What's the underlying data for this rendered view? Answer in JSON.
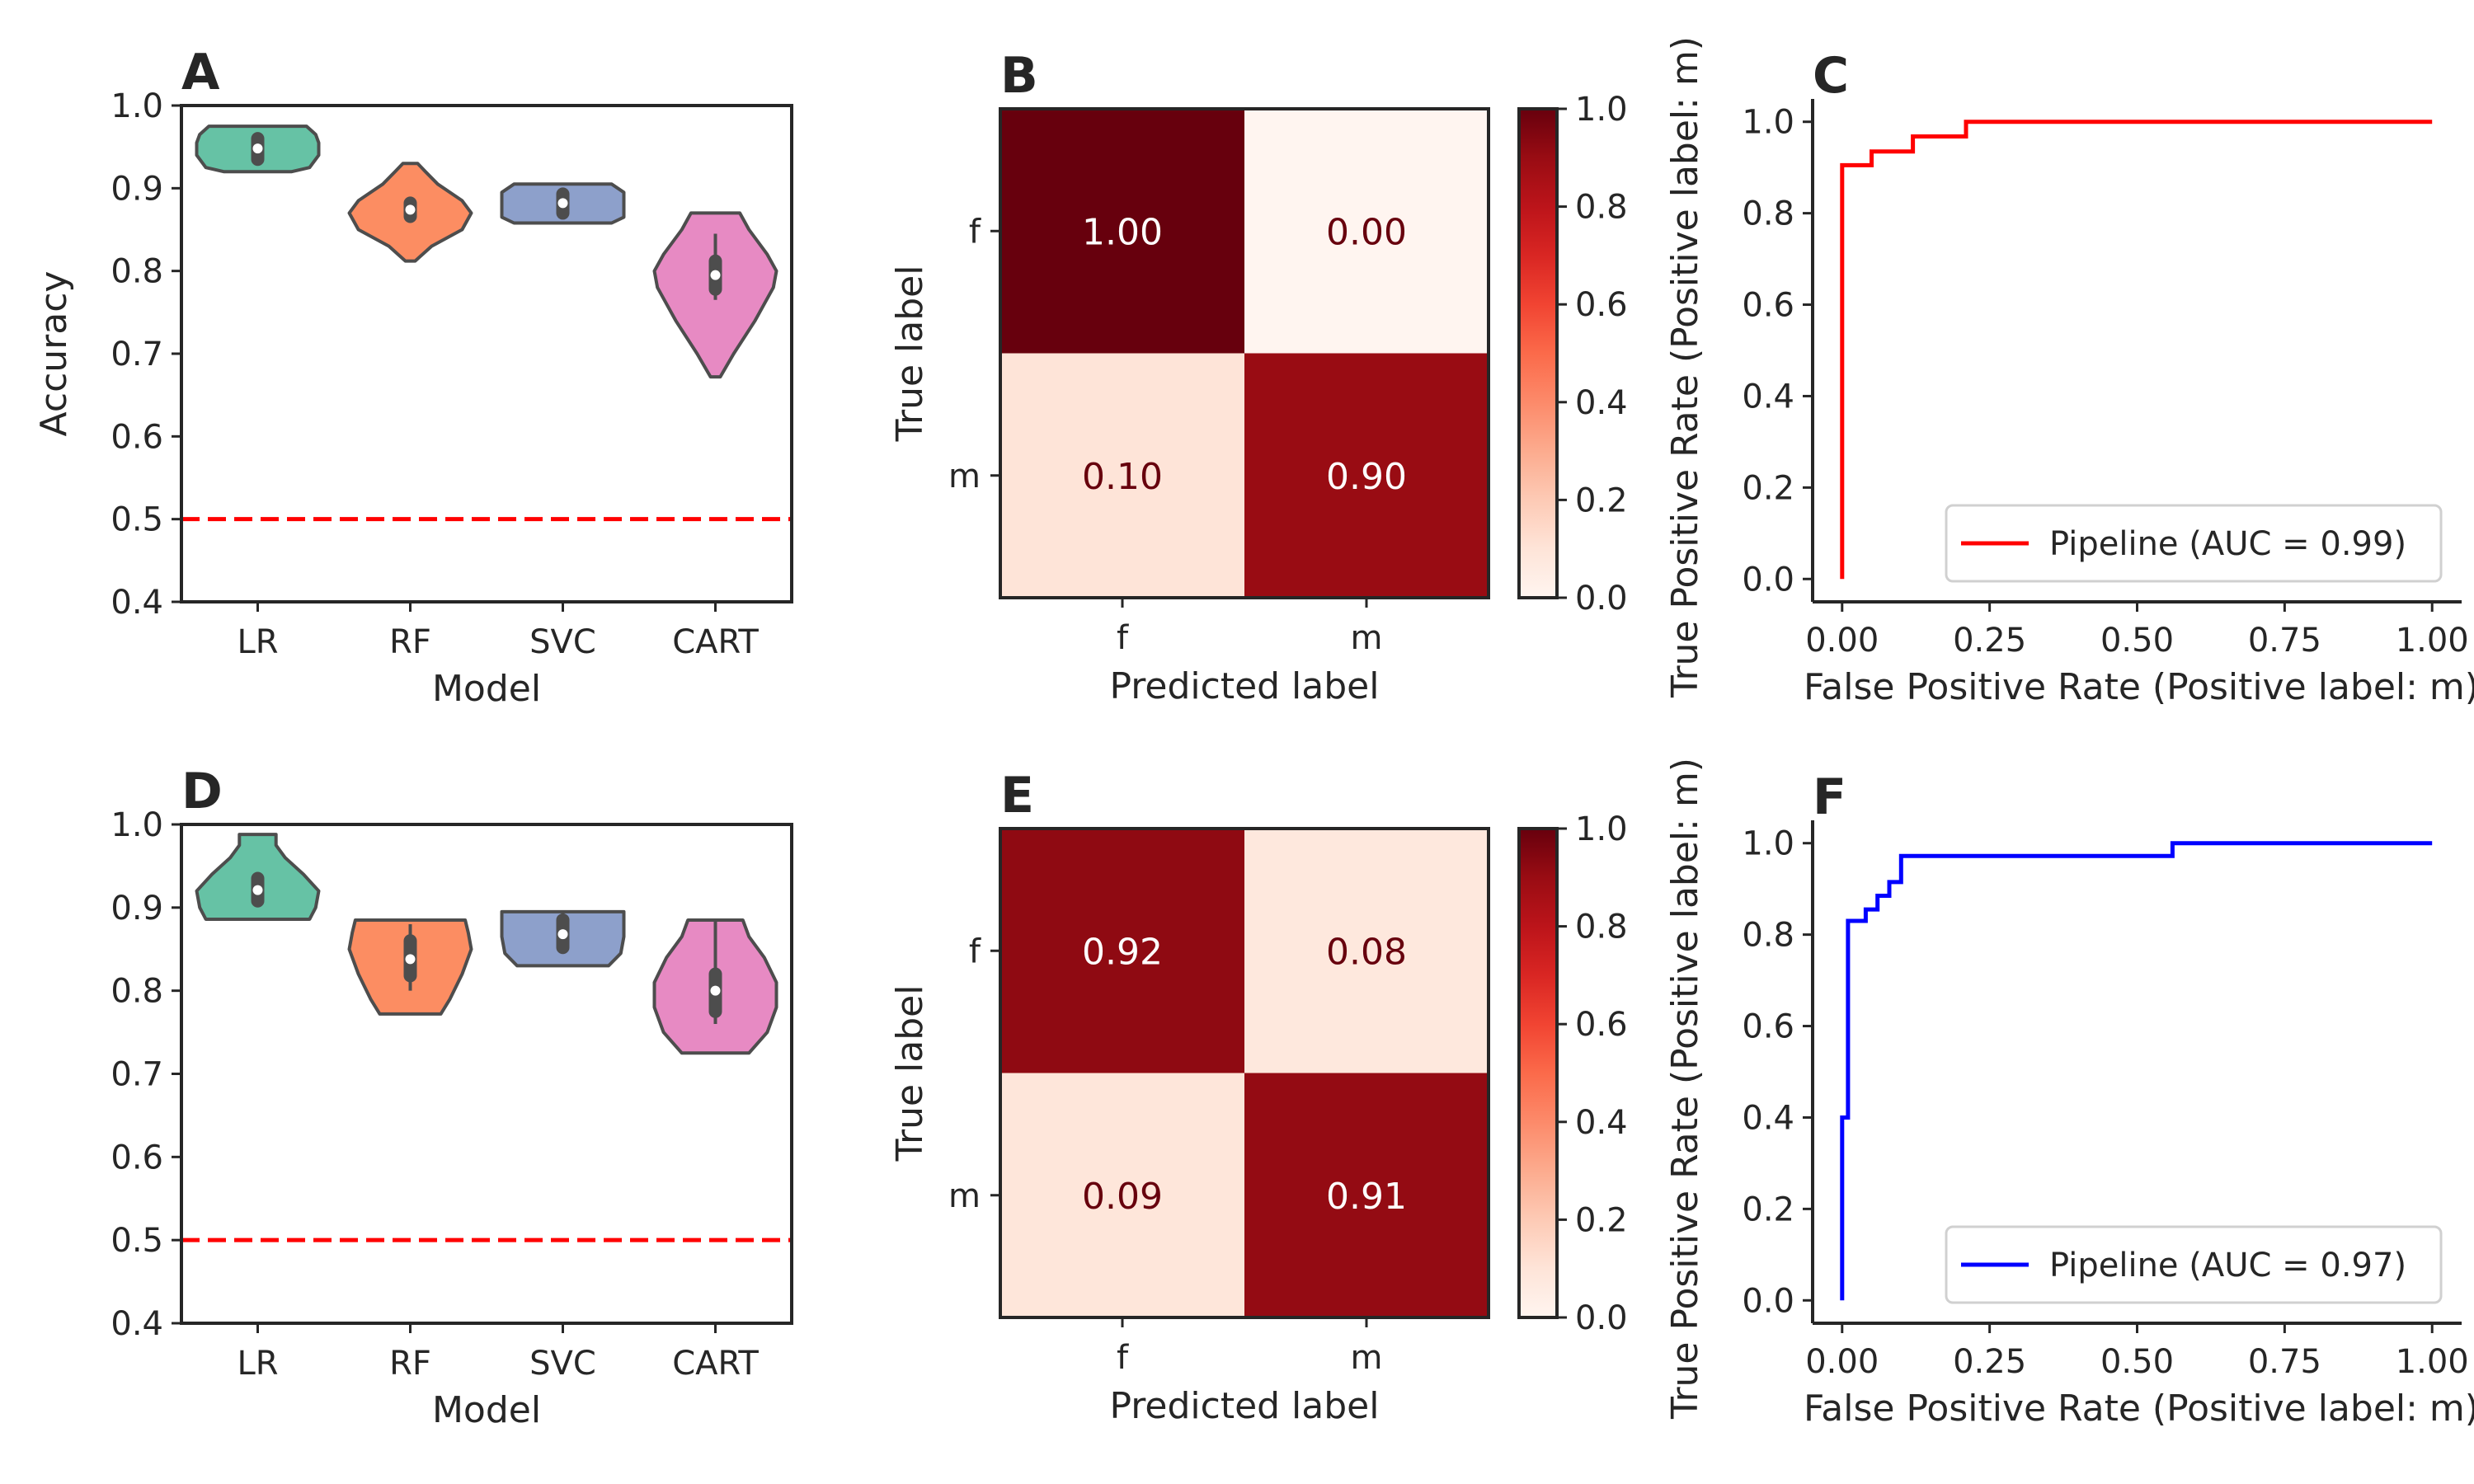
{
  "chart_data": [
    {
      "panel": "A",
      "type": "violin",
      "xlabel": "Model",
      "ylabel": "Accuracy",
      "categories": [
        "LR",
        "RF",
        "SVC",
        "CART"
      ],
      "ylim": [
        0.4,
        1.0
      ],
      "yticks": [
        "0.4",
        "0.5",
        "0.6",
        "0.7",
        "0.8",
        "0.9",
        "1.0"
      ],
      "reference_line": {
        "y": 0.5,
        "color": "#ff0000",
        "style": "dashed"
      },
      "violins": [
        {
          "category": "LR",
          "color": "#66c2a5",
          "min": 0.92,
          "max": 0.975,
          "q1": 0.935,
          "q3": 0.96,
          "median": 0.948,
          "profile": [
            [
              0.92,
              0.55
            ],
            [
              0.925,
              0.85
            ],
            [
              0.94,
              1.0
            ],
            [
              0.955,
              1.0
            ],
            [
              0.965,
              0.95
            ],
            [
              0.975,
              0.8
            ]
          ]
        },
        {
          "category": "RF",
          "color": "#fc8d62",
          "min": 0.812,
          "max": 0.93,
          "q1": 0.866,
          "q3": 0.882,
          "median": 0.874,
          "profile": [
            [
              0.812,
              0.08
            ],
            [
              0.83,
              0.35
            ],
            [
              0.85,
              0.85
            ],
            [
              0.87,
              1.0
            ],
            [
              0.885,
              0.85
            ],
            [
              0.905,
              0.45
            ],
            [
              0.92,
              0.25
            ],
            [
              0.93,
              0.12
            ]
          ]
        },
        {
          "category": "SVC",
          "color": "#8da0cb",
          "min": 0.858,
          "max": 0.905,
          "q1": 0.87,
          "q3": 0.893,
          "median": 0.882,
          "profile": [
            [
              0.858,
              0.8
            ],
            [
              0.865,
              1.0
            ],
            [
              0.88,
              1.0
            ],
            [
              0.895,
              1.0
            ],
            [
              0.905,
              0.8
            ]
          ]
        },
        {
          "category": "CART",
          "color": "#e78ac3",
          "min": 0.672,
          "max": 0.87,
          "q1": 0.778,
          "q3": 0.812,
          "median": 0.795,
          "whisker": [
            0.765,
            0.845
          ],
          "profile": [
            [
              0.672,
              0.08
            ],
            [
              0.7,
              0.3
            ],
            [
              0.74,
              0.65
            ],
            [
              0.78,
              0.95
            ],
            [
              0.8,
              1.0
            ],
            [
              0.82,
              0.85
            ],
            [
              0.85,
              0.55
            ],
            [
              0.87,
              0.4
            ]
          ]
        }
      ]
    },
    {
      "panel": "B",
      "type": "heatmap",
      "xlabel": "Predicted label",
      "ylabel": "True label",
      "x_categories": [
        "f",
        "m"
      ],
      "y_categories": [
        "f",
        "m"
      ],
      "values": [
        [
          1.0,
          0.0
        ],
        [
          0.1,
          0.9
        ]
      ],
      "labels": [
        [
          "1.00",
          "0.00"
        ],
        [
          "0.10",
          "0.90"
        ]
      ],
      "colorbar": {
        "min": 0.0,
        "max": 1.0,
        "ticks": [
          "0.0",
          "0.2",
          "0.4",
          "0.6",
          "0.8",
          "1.0"
        ],
        "colormap": "Reds"
      }
    },
    {
      "panel": "C",
      "type": "line",
      "xlabel": "False Positive Rate (Positive label: m)",
      "ylabel": "True Positive Rate (Positive label: m)",
      "xlim": [
        -0.05,
        1.05
      ],
      "ylim": [
        -0.05,
        1.05
      ],
      "xticks": [
        "0.00",
        "0.25",
        "0.50",
        "0.75",
        "1.00"
      ],
      "yticks": [
        "0.0",
        "0.2",
        "0.4",
        "0.6",
        "0.8",
        "1.0"
      ],
      "legend": "lower-right",
      "series": [
        {
          "name": "Pipeline (AUC = 0.99)",
          "color": "#ff0000",
          "x": [
            0,
            0,
            0.05,
            0.05,
            0.12,
            0.12,
            0.21,
            0.21,
            1.0
          ],
          "y": [
            0,
            0.905,
            0.905,
            0.935,
            0.935,
            0.968,
            0.968,
            1.0,
            1.0
          ]
        }
      ]
    },
    {
      "panel": "D",
      "type": "violin",
      "xlabel": "Model",
      "ylabel": "",
      "categories": [
        "LR",
        "RF",
        "SVC",
        "CART"
      ],
      "ylim": [
        0.4,
        1.0
      ],
      "yticks": [
        "0.4",
        "0.5",
        "0.6",
        "0.7",
        "0.8",
        "0.9",
        "1.0"
      ],
      "reference_line": {
        "y": 0.5,
        "color": "#ff0000",
        "style": "dashed"
      },
      "violins": [
        {
          "category": "LR",
          "color": "#66c2a5",
          "min": 0.886,
          "max": 0.988,
          "q1": 0.908,
          "q3": 0.935,
          "median": 0.921,
          "profile": [
            [
              0.886,
              0.85
            ],
            [
              0.9,
              0.95
            ],
            [
              0.92,
              1.0
            ],
            [
              0.94,
              0.75
            ],
            [
              0.96,
              0.45
            ],
            [
              0.975,
              0.3
            ],
            [
              0.988,
              0.3
            ]
          ]
        },
        {
          "category": "RF",
          "color": "#fc8d62",
          "min": 0.772,
          "max": 0.885,
          "q1": 0.818,
          "q3": 0.86,
          "median": 0.838,
          "whisker": [
            0.8,
            0.88
          ],
          "profile": [
            [
              0.772,
              0.5
            ],
            [
              0.79,
              0.65
            ],
            [
              0.82,
              0.85
            ],
            [
              0.85,
              1.0
            ],
            [
              0.87,
              0.95
            ],
            [
              0.885,
              0.9
            ]
          ]
        },
        {
          "category": "SVC",
          "color": "#8da0cb",
          "min": 0.83,
          "max": 0.895,
          "q1": 0.852,
          "q3": 0.885,
          "median": 0.868,
          "whisker": [
            0.845,
            0.895
          ],
          "profile": [
            [
              0.83,
              0.75
            ],
            [
              0.845,
              0.95
            ],
            [
              0.865,
              1.0
            ],
            [
              0.88,
              1.0
            ],
            [
              0.895,
              1.0
            ]
          ]
        },
        {
          "category": "CART",
          "color": "#e78ac3",
          "min": 0.725,
          "max": 0.885,
          "q1": 0.775,
          "q3": 0.82,
          "median": 0.8,
          "whisker": [
            0.76,
            0.885
          ],
          "profile": [
            [
              0.725,
              0.55
            ],
            [
              0.75,
              0.85
            ],
            [
              0.78,
              1.0
            ],
            [
              0.81,
              1.0
            ],
            [
              0.84,
              0.8
            ],
            [
              0.865,
              0.55
            ],
            [
              0.885,
              0.45
            ]
          ]
        }
      ]
    },
    {
      "panel": "E",
      "type": "heatmap",
      "xlabel": "Predicted label",
      "ylabel": "True label",
      "x_categories": [
        "f",
        "m"
      ],
      "y_categories": [
        "f",
        "m"
      ],
      "values": [
        [
          0.92,
          0.08
        ],
        [
          0.09,
          0.91
        ]
      ],
      "labels": [
        [
          "0.92",
          "0.08"
        ],
        [
          "0.09",
          "0.91"
        ]
      ],
      "colorbar": {
        "min": 0.0,
        "max": 1.0,
        "ticks": [
          "0.0",
          "0.2",
          "0.4",
          "0.6",
          "0.8",
          "1.0"
        ],
        "colormap": "Reds"
      }
    },
    {
      "panel": "F",
      "type": "line",
      "xlabel": "False Positive Rate (Positive label: m)",
      "ylabel": "True Positive Rate (Positive label: m)",
      "xlim": [
        -0.05,
        1.05
      ],
      "ylim": [
        -0.05,
        1.05
      ],
      "xticks": [
        "0.00",
        "0.25",
        "0.50",
        "0.75",
        "1.00"
      ],
      "yticks": [
        "0.0",
        "0.2",
        "0.4",
        "0.6",
        "0.8",
        "1.0"
      ],
      "legend": "lower-right",
      "series": [
        {
          "name": "Pipeline (AUC = 0.97)",
          "color": "#0000ff",
          "x": [
            0,
            0,
            0.01,
            0.01,
            0.02,
            0.02,
            0.04,
            0.04,
            0.06,
            0.06,
            0.08,
            0.08,
            0.1,
            0.1,
            0.56,
            0.56,
            1.0
          ],
          "y": [
            0,
            0.4,
            0.4,
            0.83,
            0.83,
            0.83,
            0.83,
            0.855,
            0.855,
            0.885,
            0.885,
            0.915,
            0.915,
            0.972,
            0.972,
            1.0,
            1.0
          ]
        }
      ]
    }
  ]
}
